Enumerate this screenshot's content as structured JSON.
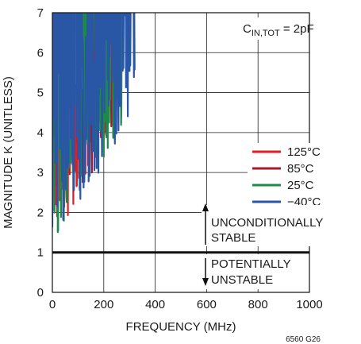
{
  "chart_data": {
    "type": "line",
    "xlabel": "FREQUENCY (MHz)",
    "ylabel": "MAGNITUDE K (UNITLESS)",
    "xlim": [
      0,
      1000
    ],
    "ylim": [
      0,
      7
    ],
    "x_ticks": [
      "0",
      "200",
      "400",
      "600",
      "800",
      "1000"
    ],
    "y_ticks": [
      "0",
      "1",
      "2",
      "3",
      "4",
      "5",
      "6",
      "7"
    ],
    "grid": true,
    "legend_position": "right",
    "annotation": {
      "main": "C",
      "sub": "IN,TOT",
      "tail": " = 2pF"
    },
    "stability_line": {
      "y": 1
    },
    "upper_label": [
      "UNCONDITIONALLY",
      "STABLE"
    ],
    "lower_label": [
      "POTENTIALLY",
      "UNSTABLE"
    ],
    "figure_code": "6560 G26",
    "series": [
      {
        "name": "125°C",
        "color": "#e31b23",
        "x_start": 0,
        "x_end": 205,
        "envelope_y0": 1.0
      },
      {
        "name": "85°C",
        "color": "#a6192e",
        "x_start": 0,
        "x_end": 235,
        "envelope_y0": 1.0
      },
      {
        "name": "25°C",
        "color": "#1e8a4a",
        "x_start": 0,
        "x_end": 270,
        "envelope_y0": 1.0
      },
      {
        "name": "−40°C",
        "color": "#2a56a6",
        "x_start": 0,
        "x_end": 320,
        "envelope_y0": 1.0
      }
    ]
  }
}
